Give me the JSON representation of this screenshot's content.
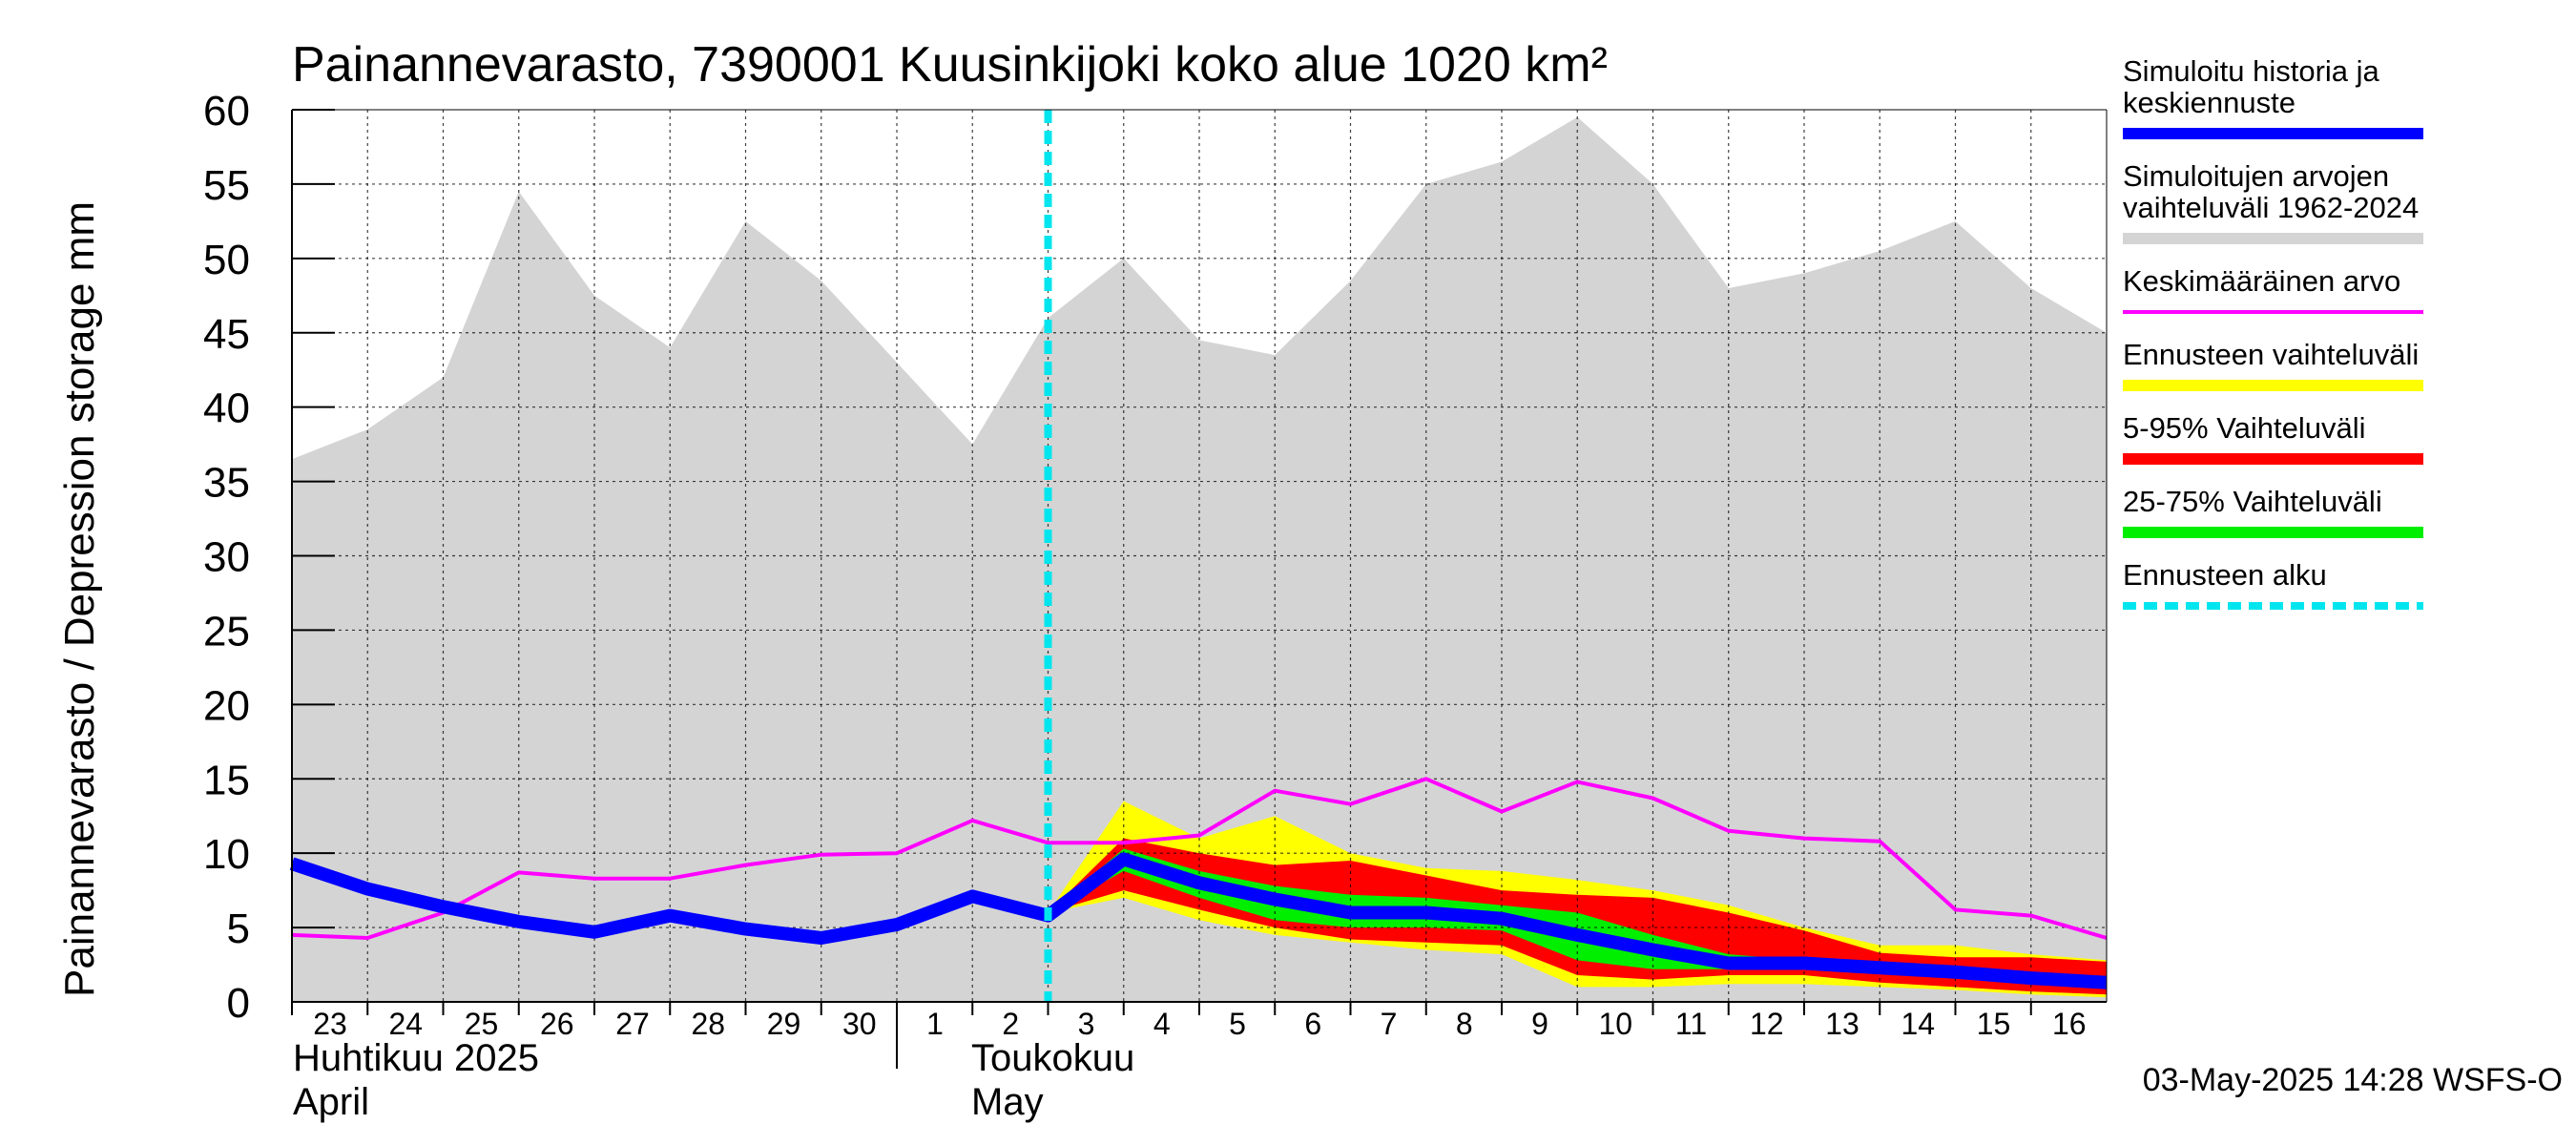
{
  "chart_data": {
    "type": "area",
    "title": "Painannevarasto, 7390001 Kuusinkijoki koko alue 1020 km²",
    "ylabel": "Painannevarasto / Depression storage    mm",
    "ylim": [
      0,
      60
    ],
    "yticks": [
      "0",
      "5",
      "10",
      "15",
      "20",
      "25",
      "30",
      "35",
      "40",
      "45",
      "50",
      "55",
      "60"
    ],
    "xlim": [
      0,
      24
    ],
    "xticks": [
      "23",
      "24",
      "25",
      "26",
      "27",
      "28",
      "29",
      "30",
      "1",
      "2",
      "3",
      "4",
      "5",
      "6",
      "7",
      "8",
      "9",
      "10",
      "11",
      "12",
      "13",
      "14",
      "15",
      "16"
    ],
    "month_labels": {
      "april_fi": "Huhtikuu  2025",
      "april_en": "April",
      "may_fi": "Toukokuu",
      "may_en": "May"
    },
    "grid": true,
    "legend_placement": "right",
    "forecast_start_x": 10,
    "series": [
      {
        "name": "Simuloitujen arvojen vaihteluväli 1962-2024",
        "kind": "band",
        "color": "#d4d4d4",
        "x": [
          0,
          1,
          2,
          3,
          4,
          5,
          6,
          7,
          8,
          9,
          10,
          11,
          12,
          13,
          14,
          15,
          16,
          17,
          18,
          19,
          20,
          21,
          22,
          23,
          24
        ],
        "upper": [
          36.5,
          38.5,
          42,
          54.5,
          47.5,
          44,
          52.5,
          48.5,
          43,
          37.5,
          46,
          50,
          44.5,
          43.5,
          48.5,
          55,
          56.5,
          59.5,
          55,
          48,
          49,
          50.5,
          52.5,
          48,
          45
        ],
        "lower": [
          0,
          0,
          0,
          0,
          0,
          0,
          0,
          0,
          0,
          0,
          0,
          0,
          0,
          0,
          0,
          0,
          0,
          0,
          0,
          0,
          0,
          0,
          0,
          0,
          0
        ]
      },
      {
        "name": "Ennusteen vaihteluväli",
        "kind": "band",
        "color": "#ffff00",
        "x": [
          10,
          11,
          12,
          13,
          14,
          15,
          16,
          17,
          18,
          19,
          20,
          21,
          22,
          23,
          24
        ],
        "upper": [
          6,
          13.5,
          11,
          12.5,
          10,
          9,
          8.8,
          8.2,
          7.5,
          6.5,
          5,
          3.8,
          3.8,
          3.2,
          2.8
        ],
        "lower": [
          6,
          7,
          5.5,
          4.5,
          4,
          3.5,
          3.2,
          1,
          1,
          1.2,
          1.2,
          1,
          0.8,
          0.5,
          0.3
        ]
      },
      {
        "name": "5-95% Vaihteluväli",
        "kind": "band",
        "color": "#ff0000",
        "x": [
          10,
          11,
          12,
          13,
          14,
          15,
          16,
          17,
          18,
          19,
          20,
          21,
          22,
          23,
          24
        ],
        "upper": [
          6,
          11,
          10,
          9.2,
          9.5,
          8.5,
          7.5,
          7.2,
          7,
          6,
          4.8,
          3.3,
          3,
          3,
          2.7
        ],
        "lower": [
          6,
          7.5,
          6.2,
          5,
          4.2,
          4,
          3.8,
          1.8,
          1.5,
          1.8,
          1.8,
          1.3,
          1,
          0.7,
          0.5
        ]
      },
      {
        "name": "25-75% Vaihteluväli",
        "kind": "band",
        "color": "#00ee00",
        "x": [
          10,
          11,
          12,
          13,
          14,
          15,
          16,
          17,
          18,
          19,
          20,
          21,
          22,
          23,
          24
        ],
        "upper": [
          6,
          10.3,
          8.8,
          7.8,
          7.2,
          7,
          6.5,
          6,
          4.5,
          3.2,
          2.8,
          2.5,
          2.2,
          1.9,
          1.6
        ],
        "lower": [
          6,
          8.8,
          7,
          5.5,
          5,
          5,
          4.8,
          2.8,
          2.2,
          2.2,
          2.2,
          2,
          1.7,
          1.3,
          1
        ]
      },
      {
        "name": "Keskimääräinen arvo",
        "kind": "line",
        "color": "#ff00ff",
        "x": [
          0,
          1,
          2,
          3,
          4,
          5,
          6,
          7,
          8,
          9,
          10,
          11,
          12,
          13,
          14,
          15,
          16,
          17,
          18,
          19,
          20,
          21,
          22,
          23,
          24
        ],
        "y": [
          4.5,
          4.3,
          6,
          8.7,
          8.3,
          8.3,
          9.2,
          9.9,
          10,
          12.2,
          10.7,
          10.7,
          11.2,
          14.2,
          13.3,
          15,
          12.8,
          14.8,
          13.7,
          11.5,
          11,
          10.8,
          6.2,
          5.8,
          4.3
        ]
      },
      {
        "name": "Simuloitu historia ja keskiennuste",
        "kind": "line",
        "color": "#0000ff",
        "x": [
          0,
          1,
          2,
          3,
          4,
          5,
          6,
          7,
          8,
          9,
          10,
          11,
          12,
          13,
          14,
          15,
          16,
          17,
          18,
          19,
          20,
          21,
          22,
          23,
          24
        ],
        "y": [
          9.3,
          7.6,
          6.4,
          5.4,
          4.7,
          5.8,
          4.9,
          4.3,
          5.2,
          7.1,
          5.8,
          9.6,
          8,
          6.9,
          6,
          6,
          5.6,
          4.5,
          3.5,
          2.6,
          2.6,
          2.3,
          2,
          1.6,
          1.3
        ]
      }
    ],
    "legend": [
      {
        "label": "Simuloitu historia ja keskiennuste",
        "color": "#0000ff",
        "style": "line"
      },
      {
        "label": "Simuloitujen arvojen vaihteluväli 1962-2024",
        "color": "#d4d4d4",
        "style": "band"
      },
      {
        "label": "Keskimääräinen arvo",
        "color": "#ff00ff",
        "style": "thin"
      },
      {
        "label": "Ennusteen vaihteluväli",
        "color": "#ffff00",
        "style": "band"
      },
      {
        "label": "5-95% Vaihteluväli",
        "color": "#ff0000",
        "style": "band"
      },
      {
        "label": "25-75% Vaihteluväli",
        "color": "#00ee00",
        "style": "band"
      },
      {
        "label": "Ennusteen alku",
        "color": "#00e5ee",
        "style": "dashed"
      }
    ],
    "footer": "03-May-2025 14:28 WSFS-O"
  }
}
